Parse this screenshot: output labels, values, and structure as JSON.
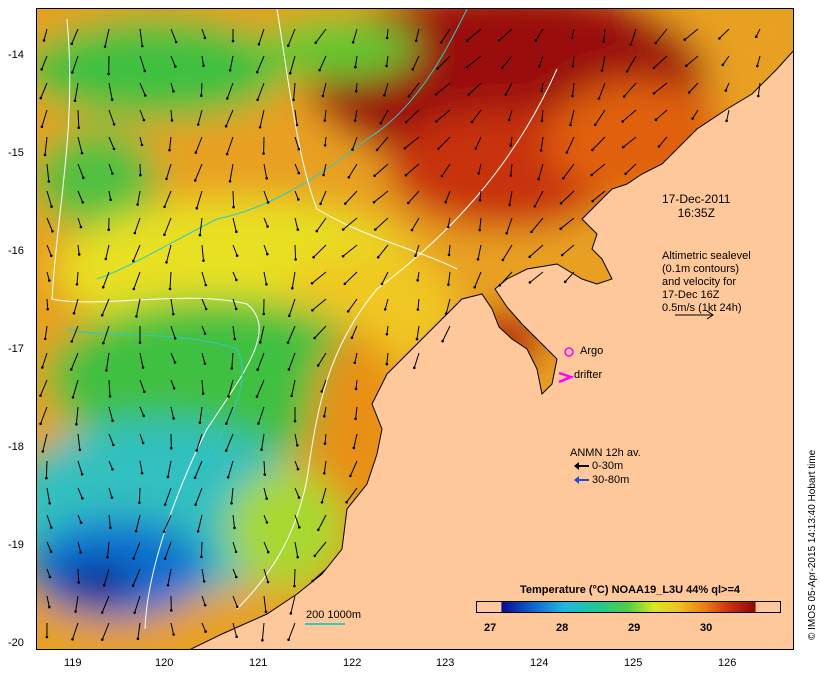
{
  "timestamp": {
    "date": "17-Dec-2011",
    "time": "16:35Z"
  },
  "altimetry_note": [
    "Altimetric sealevel",
    "(0.1m contours)",
    "and velocity for",
    "17-Dec 16Z",
    "0.5m/s (1kt 24h)"
  ],
  "legend": {
    "argo_label": "Argo",
    "drifter_label": "drifter",
    "anmn_title": "ANMN 12h av.",
    "anmn_shallow": "0-30m",
    "anmn_deep": "30-80m",
    "bathymetry": "200  1000m"
  },
  "colorbar": {
    "title": "Temperature (°C) NOAA19_L3U 44% ql>=4",
    "ticks": [
      "27",
      "28",
      "29",
      "30"
    ],
    "tick_values": [
      27,
      28,
      29,
      30
    ],
    "range": [
      26.7,
      30.55
    ]
  },
  "axes": {
    "lon_ticks": [
      "119",
      "120",
      "121",
      "122",
      "123",
      "124",
      "125",
      "126"
    ],
    "lat_ticks": [
      "-14",
      "-15",
      "-16",
      "-17",
      "-18",
      "-19",
      "-20"
    ],
    "lon_range": [
      118.62,
      126.72
    ],
    "lat_range": [
      -13.55,
      -20.08
    ]
  },
  "credit": "© IMOS 05-Apr-2015 14:13:40 Hobart time",
  "colors": {
    "land": "#ffc89a",
    "arrow": "#000000",
    "argo": "#ff00ff",
    "drifter": "#ff00ff",
    "anmn_deep": "#2050d0",
    "bathy_200": "#ffffff",
    "bathy_1000": "#30c8c8"
  }
}
